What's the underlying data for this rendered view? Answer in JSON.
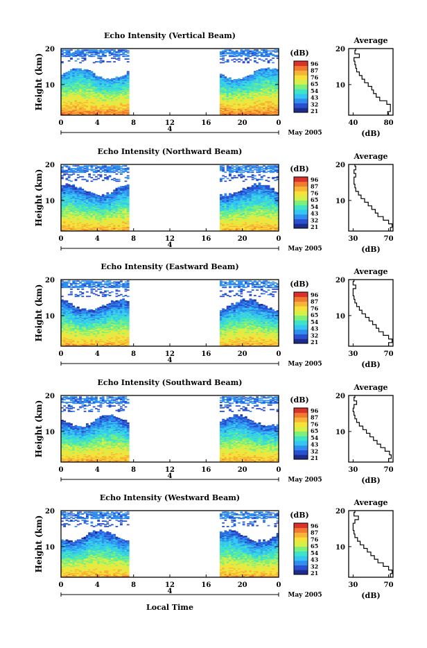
{
  "figure": {
    "xlabel": "Local Time",
    "date_label": "May 2005",
    "day_marker": "4"
  },
  "colorbar": {
    "title": "(dB)",
    "tick_labels": [
      "96",
      "87",
      "76",
      "65",
      "54",
      "43",
      "32",
      "21"
    ],
    "colors": [
      "#1d2c8c",
      "#2a4fd0",
      "#2f8ff0",
      "#35c7f2",
      "#3fe3c8",
      "#7ef07a",
      "#d6f04a",
      "#f7e23a",
      "#f8b437",
      "#f27a30",
      "#d8322a"
    ]
  },
  "chart_data": [
    {
      "type": "heatmap",
      "title": "Echo Intensity (Vertical Beam)",
      "xlabel": "",
      "ylabel": "Height (km)",
      "xlim": [
        0,
        24
      ],
      "ylim": [
        1.5,
        20
      ],
      "xticks": [
        "0",
        "4",
        "8",
        "12",
        "16",
        "20",
        "0"
      ],
      "yticks": [
        "20",
        "10"
      ],
      "data_spans_hours": [
        [
          0,
          7.5
        ],
        [
          17.5,
          24
        ]
      ],
      "colorbar_range_dB": [
        21,
        96
      ],
      "average_profile": {
        "title": "Average",
        "xlabel": "(dB)",
        "xlim": [
          35,
          85
        ],
        "xticks": [
          "40",
          "80"
        ],
        "height_km": [
          2,
          3,
          4,
          5,
          6,
          7,
          8,
          9,
          10,
          11,
          12,
          13,
          14,
          15,
          16,
          17,
          18,
          19,
          20
        ],
        "mean_dB": [
          79,
          82,
          82,
          78,
          70,
          66,
          63,
          61,
          57,
          53,
          50,
          47,
          44,
          43,
          42,
          41,
          47,
          42,
          43
        ]
      }
    },
    {
      "type": "heatmap",
      "title": "Echo Intensity (Northward Beam)",
      "xlabel": "",
      "ylabel": "Height (km)",
      "xlim": [
        0,
        24
      ],
      "ylim": [
        1.5,
        20
      ],
      "xticks": [
        "0",
        "4",
        "8",
        "12",
        "16",
        "20",
        "0"
      ],
      "yticks": [
        "20",
        "10"
      ],
      "data_spans_hours": [
        [
          0,
          7.5
        ],
        [
          17.5,
          24
        ]
      ],
      "colorbar_range_dB": [
        21,
        96
      ],
      "average_profile": {
        "title": "Average",
        "xlabel": "(dB)",
        "xlim": [
          25,
          75
        ],
        "xticks": [
          "30",
          "70"
        ],
        "height_km": [
          2,
          3,
          4,
          5,
          6,
          7,
          8,
          9,
          10,
          11,
          12,
          13,
          14,
          15,
          16,
          17,
          18,
          19,
          20
        ],
        "mean_dB": [
          72,
          74,
          70,
          64,
          58,
          55,
          51,
          47,
          43,
          39,
          36,
          33,
          32,
          31,
          31,
          33,
          31,
          33,
          32
        ]
      }
    },
    {
      "type": "heatmap",
      "title": "Echo Intensity (Eastward Beam)",
      "xlabel": "",
      "ylabel": "Height (km)",
      "xlim": [
        0,
        24
      ],
      "ylim": [
        1.5,
        20
      ],
      "xticks": [
        "0",
        "4",
        "8",
        "12",
        "16",
        "20",
        "0"
      ],
      "yticks": [
        "20",
        "10"
      ],
      "data_spans_hours": [
        [
          0,
          7.5
        ],
        [
          17.5,
          24
        ]
      ],
      "colorbar_range_dB": [
        21,
        96
      ],
      "average_profile": {
        "title": "Average",
        "xlabel": "(dB)",
        "xlim": [
          25,
          75
        ],
        "xticks": [
          "30",
          "70"
        ],
        "height_km": [
          2,
          3,
          4,
          5,
          6,
          7,
          8,
          9,
          10,
          11,
          12,
          13,
          14,
          15,
          16,
          17,
          18,
          19,
          20
        ],
        "mean_dB": [
          70,
          74,
          70,
          64,
          59,
          56,
          52,
          48,
          44,
          40,
          37,
          34,
          32,
          31,
          30,
          30,
          33,
          30,
          31
        ]
      }
    },
    {
      "type": "heatmap",
      "title": "Echo Intensity (Southward Beam)",
      "xlabel": "",
      "ylabel": "Height (km)",
      "xlim": [
        0,
        24
      ],
      "ylim": [
        1.5,
        20
      ],
      "xticks": [
        "0",
        "4",
        "8",
        "12",
        "16",
        "20",
        "0"
      ],
      "yticks": [
        "20",
        "10"
      ],
      "data_spans_hours": [
        [
          0,
          7.5
        ],
        [
          17.5,
          24
        ]
      ],
      "colorbar_range_dB": [
        21,
        96
      ],
      "average_profile": {
        "title": "Average",
        "xlabel": "(dB)",
        "xlim": [
          25,
          75
        ],
        "xticks": [
          "30",
          "70"
        ],
        "height_km": [
          2,
          3,
          4,
          5,
          6,
          7,
          8,
          9,
          10,
          11,
          12,
          13,
          14,
          15,
          16,
          17,
          18,
          19,
          20
        ],
        "mean_dB": [
          70,
          73,
          71,
          66,
          61,
          57,
          53,
          49,
          45,
          41,
          37,
          34,
          32,
          31,
          30,
          31,
          34,
          31,
          32
        ]
      }
    },
    {
      "type": "heatmap",
      "title": "Echo Intensity (Westward Beam)",
      "xlabel": "Local Time",
      "ylabel": "Height (km)",
      "xlim": [
        0,
        24
      ],
      "ylim": [
        1.5,
        20
      ],
      "xticks": [
        "0",
        "4",
        "8",
        "12",
        "16",
        "20",
        "0"
      ],
      "yticks": [
        "20",
        "10"
      ],
      "data_spans_hours": [
        [
          0,
          7.5
        ],
        [
          17.5,
          24
        ]
      ],
      "colorbar_range_dB": [
        21,
        96
      ],
      "average_profile": {
        "title": "Average",
        "xlabel": "(dB)",
        "xlim": [
          25,
          75
        ],
        "xticks": [
          "30",
          "70"
        ],
        "height_km": [
          2,
          3,
          4,
          5,
          6,
          7,
          8,
          9,
          10,
          11,
          12,
          13,
          14,
          15,
          16,
          17,
          18,
          19,
          20
        ],
        "mean_dB": [
          72,
          74,
          70,
          64,
          58,
          54,
          50,
          46,
          42,
          38,
          35,
          32,
          31,
          30,
          30,
          32,
          36,
          31,
          32
        ]
      }
    }
  ]
}
